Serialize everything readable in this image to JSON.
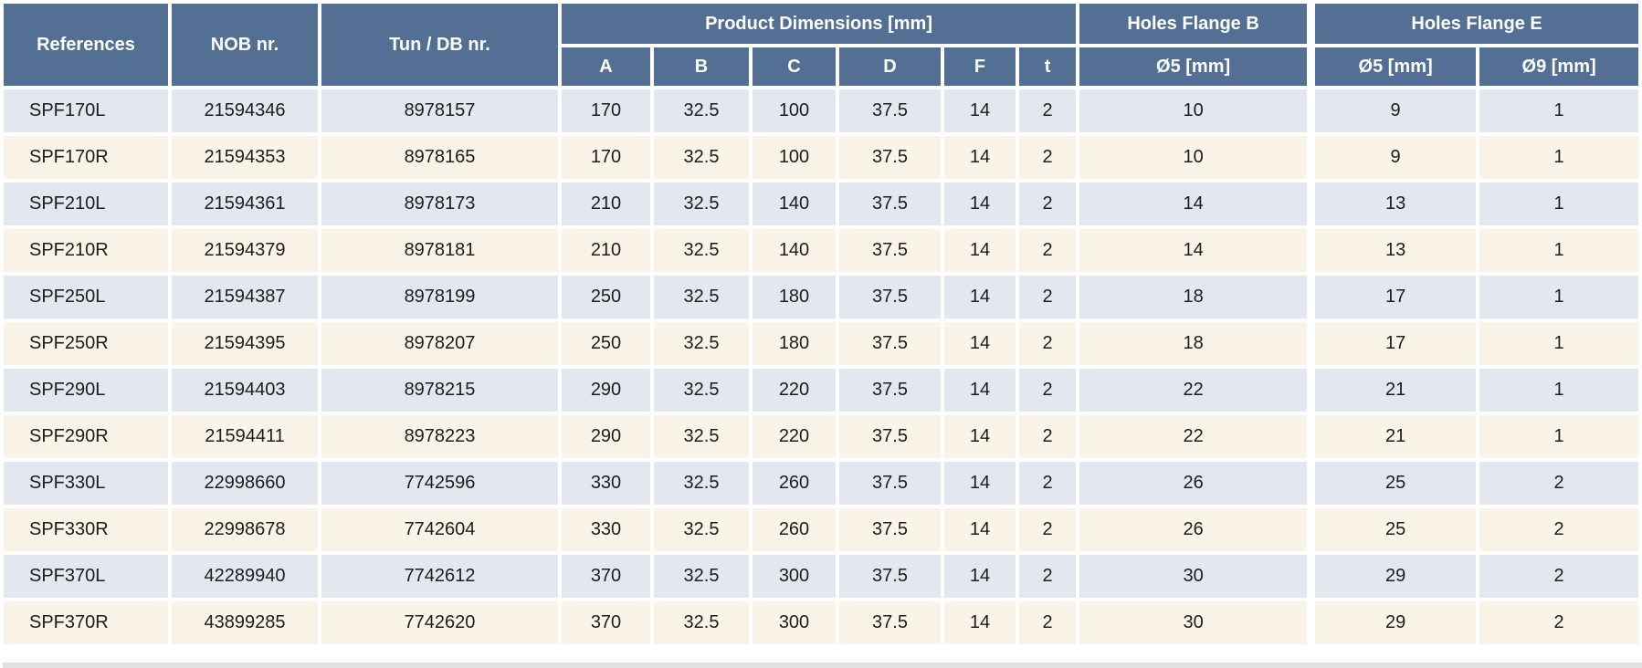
{
  "table": {
    "headers": {
      "references": "References",
      "nob": "NOB nr.",
      "tun_db": "Tun / DB nr.",
      "product_dimensions_group": "Product Dimensions [mm]",
      "dims": [
        "A",
        "B",
        "C",
        "D",
        "F",
        "t"
      ],
      "holes_flange_b_group": "Holes Flange B",
      "holes_flange_b_sub": "Ø5 [mm]",
      "holes_flange_e_group": "Holes Flange E",
      "holes_flange_e_subs": [
        "Ø5 [mm]",
        "Ø9 [mm]"
      ]
    },
    "rows": [
      {
        "ref": "SPF170L",
        "nob": "21594346",
        "tun_db": "8978157",
        "a": "170",
        "b": "32.5",
        "c": "100",
        "d": "37.5",
        "f": "14",
        "t": "2",
        "hb5": "10",
        "he5": "9",
        "he9": "1"
      },
      {
        "ref": "SPF170R",
        "nob": "21594353",
        "tun_db": "8978165",
        "a": "170",
        "b": "32.5",
        "c": "100",
        "d": "37.5",
        "f": "14",
        "t": "2",
        "hb5": "10",
        "he5": "9",
        "he9": "1"
      },
      {
        "ref": "SPF210L",
        "nob": "21594361",
        "tun_db": "8978173",
        "a": "210",
        "b": "32.5",
        "c": "140",
        "d": "37.5",
        "f": "14",
        "t": "2",
        "hb5": "14",
        "he5": "13",
        "he9": "1"
      },
      {
        "ref": "SPF210R",
        "nob": "21594379",
        "tun_db": "8978181",
        "a": "210",
        "b": "32.5",
        "c": "140",
        "d": "37.5",
        "f": "14",
        "t": "2",
        "hb5": "14",
        "he5": "13",
        "he9": "1"
      },
      {
        "ref": "SPF250L",
        "nob": "21594387",
        "tun_db": "8978199",
        "a": "250",
        "b": "32.5",
        "c": "180",
        "d": "37.5",
        "f": "14",
        "t": "2",
        "hb5": "18",
        "he5": "17",
        "he9": "1"
      },
      {
        "ref": "SPF250R",
        "nob": "21594395",
        "tun_db": "8978207",
        "a": "250",
        "b": "32.5",
        "c": "180",
        "d": "37.5",
        "f": "14",
        "t": "2",
        "hb5": "18",
        "he5": "17",
        "he9": "1"
      },
      {
        "ref": "SPF290L",
        "nob": "21594403",
        "tun_db": "8978215",
        "a": "290",
        "b": "32.5",
        "c": "220",
        "d": "37.5",
        "f": "14",
        "t": "2",
        "hb5": "22",
        "he5": "21",
        "he9": "1"
      },
      {
        "ref": "SPF290R",
        "nob": "21594411",
        "tun_db": "8978223",
        "a": "290",
        "b": "32.5",
        "c": "220",
        "d": "37.5",
        "f": "14",
        "t": "2",
        "hb5": "22",
        "he5": "21",
        "he9": "1"
      },
      {
        "ref": "SPF330L",
        "nob": "22998660",
        "tun_db": "7742596",
        "a": "330",
        "b": "32.5",
        "c": "260",
        "d": "37.5",
        "f": "14",
        "t": "2",
        "hb5": "26",
        "he5": "25",
        "he9": "2"
      },
      {
        "ref": "SPF330R",
        "nob": "22998678",
        "tun_db": "7742604",
        "a": "330",
        "b": "32.5",
        "c": "260",
        "d": "37.5",
        "f": "14",
        "t": "2",
        "hb5": "26",
        "he5": "25",
        "he9": "2"
      },
      {
        "ref": "SPF370L",
        "nob": "42289940",
        "tun_db": "7742612",
        "a": "370",
        "b": "32.5",
        "c": "300",
        "d": "37.5",
        "f": "14",
        "t": "2",
        "hb5": "30",
        "he5": "29",
        "he9": "2"
      },
      {
        "ref": "SPF370R",
        "nob": "43899285",
        "tun_db": "7742620",
        "a": "370",
        "b": "32.5",
        "c": "300",
        "d": "37.5",
        "f": "14",
        "t": "2",
        "hb5": "30",
        "he5": "29",
        "he9": "2"
      }
    ],
    "row_cell_order": [
      "ref",
      "nob",
      "tun_db",
      "a",
      "b",
      "c",
      "d",
      "f",
      "t",
      "hb5",
      "he5",
      "he9"
    ]
  },
  "colors": {
    "header_bg": "#537094",
    "header_text": "#ffffff",
    "row_odd_bg": "#e3e7f0",
    "row_even_bg": "#faf3e8",
    "data_text": "#1d1d1b",
    "grid_gap": "#ffffff",
    "partial_row_bg": "#e1e1e1"
  }
}
